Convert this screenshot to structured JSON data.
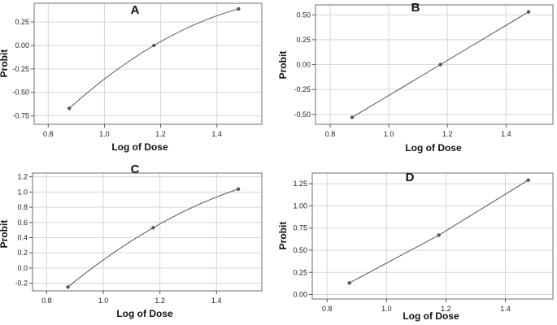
{
  "chart_data": [
    {
      "type": "line",
      "panel_label": "A",
      "xlabel": "Log of Dose",
      "ylabel": "Probit",
      "fit": "curve",
      "x": [
        0.875,
        1.176,
        1.477
      ],
      "y": [
        -0.67,
        0.0,
        0.39
      ],
      "xlim": [
        0.75,
        1.56
      ],
      "ylim": [
        -0.84,
        0.45
      ],
      "xticks": [
        0.8,
        1.0,
        1.2,
        1.4
      ],
      "xtick_labels": [
        "0.8",
        "1.0",
        "1.2",
        "1.4"
      ],
      "yticks": [
        -0.75,
        -0.5,
        -0.25,
        0.0,
        0.25
      ],
      "ytick_labels": [
        "-0.75",
        "-0.50",
        "-0.25",
        "0.00",
        "0.25"
      ],
      "grid": true
    },
    {
      "type": "line",
      "panel_label": "B",
      "xlabel": "Log of Dose",
      "ylabel": "Probit",
      "fit": "linear",
      "x": [
        0.875,
        1.176,
        1.477
      ],
      "y": [
        -0.53,
        0.0,
        0.53
      ],
      "xlim": [
        0.75,
        1.56
      ],
      "ylim": [
        -0.6,
        0.6
      ],
      "xticks": [
        0.8,
        1.0,
        1.2,
        1.4
      ],
      "xtick_labels": [
        "0.8",
        "1.0",
        "1.2",
        "1.4"
      ],
      "yticks": [
        -0.5,
        -0.25,
        0.0,
        0.25,
        0.5
      ],
      "ytick_labels": [
        "-0.50",
        "-0.25",
        "0.00",
        "0.25",
        "0.50"
      ],
      "grid": true
    },
    {
      "type": "line",
      "panel_label": "C",
      "xlabel": "Log of Dose",
      "ylabel": "Probit",
      "fit": "curve",
      "x": [
        0.875,
        1.176,
        1.477
      ],
      "y": [
        -0.25,
        0.53,
        1.04
      ],
      "xlim": [
        0.75,
        1.56
      ],
      "ylim": [
        -0.3,
        1.25
      ],
      "xticks": [
        0.8,
        1.0,
        1.2,
        1.4
      ],
      "xtick_labels": [
        "0.8",
        "1.0",
        "1.2",
        "1.4"
      ],
      "yticks": [
        -0.2,
        0.0,
        0.2,
        0.4,
        0.6,
        0.8,
        1.0,
        1.2
      ],
      "ytick_labels": [
        "-0.2",
        "0.0",
        "0.2",
        "0.4",
        "0.6",
        "0.8",
        "1.0",
        "1.2"
      ],
      "grid": true
    },
    {
      "type": "line",
      "panel_label": "D",
      "xlabel": "Log of Dose",
      "ylabel": "Probit",
      "fit": "linear",
      "x": [
        0.875,
        1.176,
        1.477
      ],
      "y": [
        0.13,
        0.67,
        1.29
      ],
      "xlim": [
        0.75,
        1.56
      ],
      "ylim": [
        -0.05,
        1.37
      ],
      "xticks": [
        0.8,
        1.0,
        1.2,
        1.4
      ],
      "xtick_labels": [
        "0.8",
        "1.0",
        "1.2",
        "1.4"
      ],
      "yticks": [
        0.0,
        0.25,
        0.5,
        0.75,
        1.0,
        1.25
      ],
      "ytick_labels": [
        "0.00",
        "0.25",
        "0.50",
        "0.75",
        "1.00",
        "1.25"
      ],
      "grid": true
    }
  ],
  "colors": {
    "line": "#555555",
    "point": "#555555",
    "grid": "#d6d6d6",
    "frame": "#6f6f6f",
    "background": "#ffffff"
  }
}
